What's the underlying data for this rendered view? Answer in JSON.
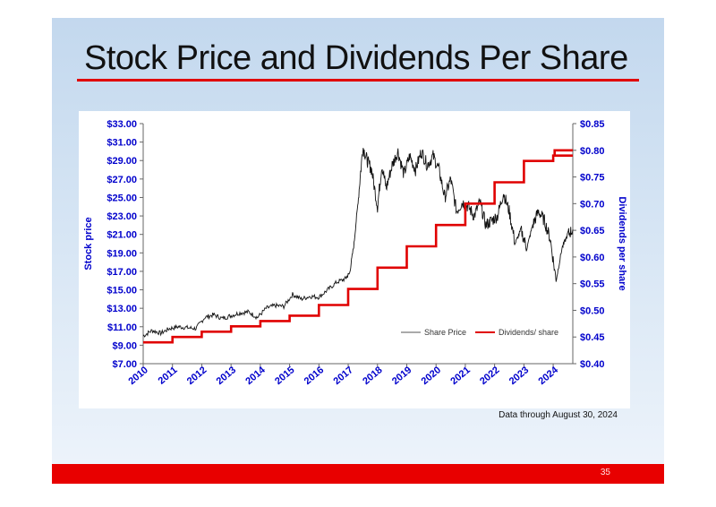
{
  "slide": {
    "title": "Stock Price and Dividends Per Share",
    "note": "Data through August 30, 2024",
    "page_number": "35"
  },
  "colors": {
    "title_rule": "#e10000",
    "footer": "#e80000",
    "axis_text": "#0000cc",
    "price_line": "#111111",
    "dividend_line": "#e00000"
  },
  "chart_data": {
    "type": "line",
    "title": "",
    "xlabel": "",
    "ylabel": "Stock price",
    "y2label": "Dividends per share",
    "xlim": [
      2010,
      2024.67
    ],
    "ylim": [
      7,
      33
    ],
    "y2lim": [
      0.4,
      0.85
    ],
    "x_tick_labels": [
      "2010",
      "2011",
      "2012",
      "2013",
      "2014",
      "2015",
      "2016",
      "2017",
      "2018",
      "2019",
      "2020",
      "2021",
      "2022",
      "2023",
      "2024"
    ],
    "y_tick_labels": [
      "$7.00",
      "$9.00",
      "$11.00",
      "$13.00",
      "$15.00",
      "$17.00",
      "$19.00",
      "$21.00",
      "$23.00",
      "$25.00",
      "$27.00",
      "$29.00",
      "$31.00",
      "$33.00"
    ],
    "y_ticks": [
      7,
      9,
      11,
      13,
      15,
      17,
      19,
      21,
      23,
      25,
      27,
      29,
      31,
      33
    ],
    "y2_tick_labels": [
      "$0.40",
      "$0.45",
      "$0.50",
      "$0.55",
      "$0.60",
      "$0.65",
      "$0.70",
      "$0.75",
      "$0.80",
      "$0.85"
    ],
    "y2_ticks": [
      0.4,
      0.45,
      0.5,
      0.55,
      0.6,
      0.65,
      0.7,
      0.75,
      0.8,
      0.85
    ],
    "legend": {
      "placement": "inside-lower-right",
      "entries": [
        "Share Price",
        "Dividends/ share"
      ]
    },
    "series": [
      {
        "name": "Share Price",
        "axis": "left",
        "x": [
          2010.0,
          2010.3,
          2010.6,
          2010.9,
          2011.2,
          2011.5,
          2011.8,
          2012.1,
          2012.4,
          2012.7,
          2013.0,
          2013.3,
          2013.6,
          2013.9,
          2014.2,
          2014.5,
          2014.8,
          2015.1,
          2015.4,
          2015.7,
          2016.0,
          2016.3,
          2016.6,
          2016.9,
          2017.05,
          2017.2,
          2017.35,
          2017.5,
          2017.65,
          2017.8,
          2018.0,
          2018.15,
          2018.3,
          2018.5,
          2018.7,
          2018.9,
          2019.1,
          2019.3,
          2019.5,
          2019.7,
          2019.9,
          2020.1,
          2020.3,
          2020.5,
          2020.7,
          2020.9,
          2021.1,
          2021.3,
          2021.5,
          2021.7,
          2021.9,
          2022.1,
          2022.3,
          2022.5,
          2022.7,
          2022.9,
          2023.1,
          2023.3,
          2023.5,
          2023.7,
          2023.9,
          2024.1,
          2024.3,
          2024.5,
          2024.67
        ],
        "y": [
          10.0,
          10.6,
          10.3,
          10.8,
          11.0,
          10.9,
          10.8,
          12.0,
          12.3,
          11.9,
          12.2,
          12.5,
          12.6,
          12.0,
          13.0,
          13.3,
          13.2,
          14.5,
          14.0,
          14.3,
          14.2,
          15.0,
          15.8,
          16.2,
          16.8,
          20.0,
          25.0,
          30.5,
          29.0,
          28.0,
          24.0,
          28.5,
          26.0,
          28.5,
          30.0,
          27.5,
          29.5,
          28.0,
          30.0,
          28.5,
          29.5,
          28.0,
          25.0,
          27.0,
          23.5,
          24.5,
          24.0,
          23.0,
          24.5,
          22.0,
          22.5,
          23.0,
          25.5,
          23.5,
          20.0,
          21.5,
          19.5,
          22.0,
          23.5,
          22.5,
          20.5,
          16.0,
          19.5,
          21.0,
          21.5
        ]
      },
      {
        "name": "Dividends/ share",
        "axis": "right",
        "step_start_x": [
          2010.0,
          2011.0,
          2012.0,
          2013.0,
          2014.0,
          2015.0,
          2016.0,
          2017.0,
          2018.0,
          2019.0,
          2020.0,
          2021.0,
          2022.0,
          2023.0,
          2024.0
        ],
        "values": [
          0.44,
          0.45,
          0.46,
          0.47,
          0.48,
          0.49,
          0.51,
          0.54,
          0.58,
          0.62,
          0.66,
          0.7,
          0.74,
          0.78,
          0.79
        ],
        "final_step": {
          "x": 2024.0,
          "value": 0.8
        },
        "end_x": 2024.67
      }
    ]
  }
}
